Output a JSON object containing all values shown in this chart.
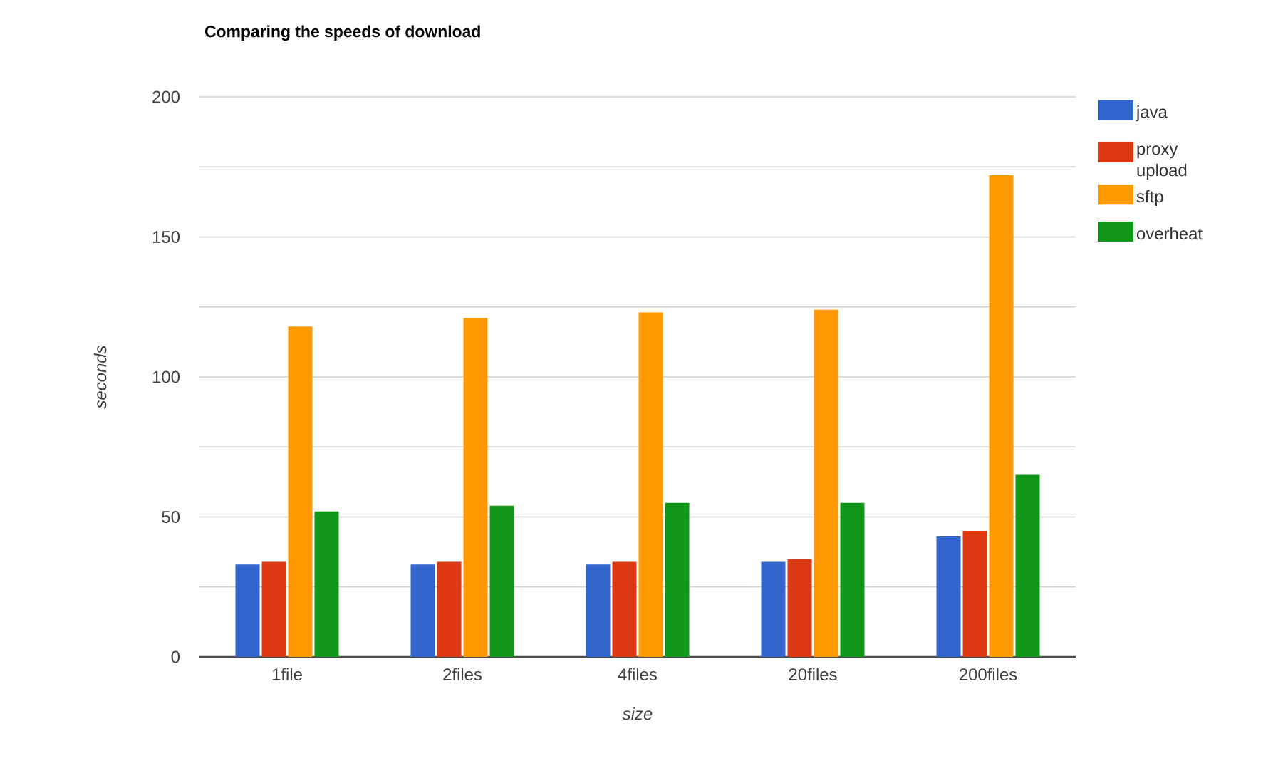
{
  "chart_data": {
    "type": "bar",
    "title": "Comparing the speeds of download",
    "xlabel": "size",
    "ylabel": "seconds",
    "categories": [
      "1file",
      "2files",
      "4files",
      "20files",
      "200files"
    ],
    "series": [
      {
        "name": "java",
        "color": "#3366cc",
        "values": [
          33,
          33,
          33,
          34,
          43
        ]
      },
      {
        "name": "proxy upload",
        "color": "#dc3912",
        "values": [
          34,
          34,
          34,
          35,
          45
        ]
      },
      {
        "name": "sftp",
        "color": "#ff9900",
        "values": [
          118,
          121,
          123,
          124,
          172
        ]
      },
      {
        "name": "overheat",
        "color": "#109618",
        "values": [
          52,
          54,
          55,
          55,
          65
        ]
      }
    ],
    "ylim": [
      0,
      200
    ],
    "yticks": [
      0,
      {
        "value": 25,
        "label": null
      },
      50,
      {
        "value": 75,
        "label": null
      },
      100,
      {
        "value": 125,
        "label": null
      },
      150,
      {
        "value": 175,
        "label": null
      },
      200
    ],
    "grid": "y",
    "legend": "top right"
  }
}
